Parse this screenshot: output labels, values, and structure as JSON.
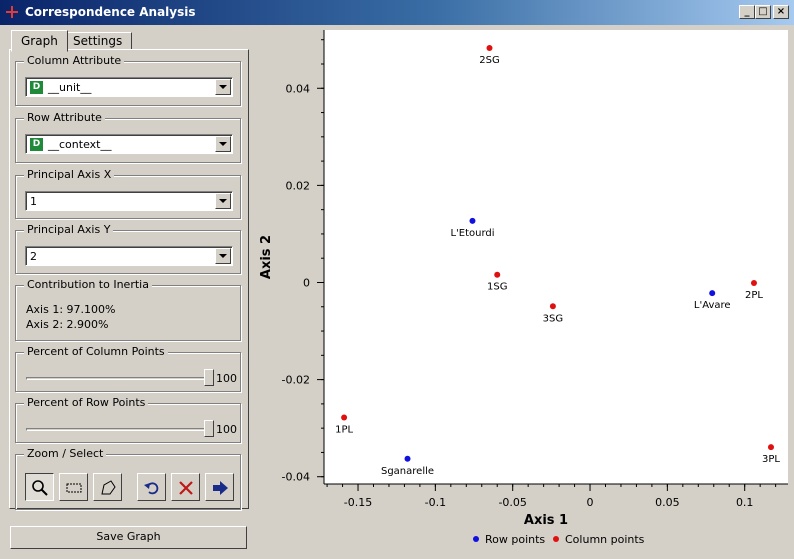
{
  "window": {
    "title": "Correspondence Analysis",
    "controls": {
      "minimize": "_",
      "maximize": "□",
      "close": "×"
    }
  },
  "tabs": [
    {
      "label": "Graph",
      "active": true
    },
    {
      "label": "Settings",
      "active": false
    }
  ],
  "column_attribute": {
    "label": "Column Attribute",
    "badge": "D",
    "value": "__unit__"
  },
  "row_attribute": {
    "label": "Row Attribute",
    "badge": "D",
    "value": "__context__"
  },
  "principal_axis_x": {
    "label": "Principal Axis X",
    "value": "1"
  },
  "principal_axis_y": {
    "label": "Principal Axis Y",
    "value": "2"
  },
  "inertia": {
    "label": "Contribution to Inertia",
    "lines": [
      "Axis 1: 97.100%",
      "Axis 2: 2.900%"
    ]
  },
  "column_points_pct": {
    "label": "Percent of Column Points",
    "value": 100,
    "display": "100"
  },
  "row_points_pct": {
    "label": "Percent of Row Points",
    "value": 100,
    "display": "100"
  },
  "zoom_select": {
    "label": "Zoom / Select",
    "tools": [
      "zoom-icon",
      "rectangle-select-icon",
      "polygon-select-icon",
      "undo-icon",
      "clear-icon",
      "send-data-icon"
    ]
  },
  "save_button": {
    "label": "Save Graph"
  },
  "colors": {
    "row_points": "#1010e0",
    "column_points": "#e01010",
    "titlebar_start": "#0a246a"
  },
  "chart_data": {
    "type": "scatter",
    "xlabel": "Axis 1",
    "ylabel": "Axis 2",
    "xlim": [
      -0.172,
      0.128
    ],
    "ylim": [
      -0.0415,
      0.052
    ],
    "x_ticks": [
      -0.15,
      -0.1,
      -0.05,
      0,
      0.05,
      0.1
    ],
    "x_tick_labels": [
      "-0.15",
      "-0.1",
      "-0.05",
      "0",
      "0.05",
      "0.1"
    ],
    "y_ticks": [
      0.04,
      0.02,
      0,
      -0.02,
      -0.04
    ],
    "y_tick_labels": [
      "0.04",
      "0.02",
      "0",
      "-0.02",
      "-0.04"
    ],
    "grid": false,
    "legend_position": "bottom",
    "series": [
      {
        "name": "Row points",
        "color": "#1010e0",
        "points": [
          {
            "label": "L'Etourdi",
            "x": -0.076,
            "y": 0.0127
          },
          {
            "label": "L'Avare",
            "x": 0.079,
            "y": -0.0022
          },
          {
            "label": "Sganarelle",
            "x": -0.118,
            "y": -0.0363
          }
        ]
      },
      {
        "name": "Column points",
        "color": "#e01010",
        "points": [
          {
            "label": "2SG",
            "x": -0.065,
            "y": 0.0483
          },
          {
            "label": "1SG",
            "x": -0.06,
            "y": 0.0016
          },
          {
            "label": "3SG",
            "x": -0.024,
            "y": -0.0049
          },
          {
            "label": "2PL",
            "x": 0.106,
            "y": -0.0001
          },
          {
            "label": "1PL",
            "x": -0.159,
            "y": -0.0278
          },
          {
            "label": "3PL",
            "x": 0.117,
            "y": -0.0339
          }
        ]
      }
    ]
  }
}
